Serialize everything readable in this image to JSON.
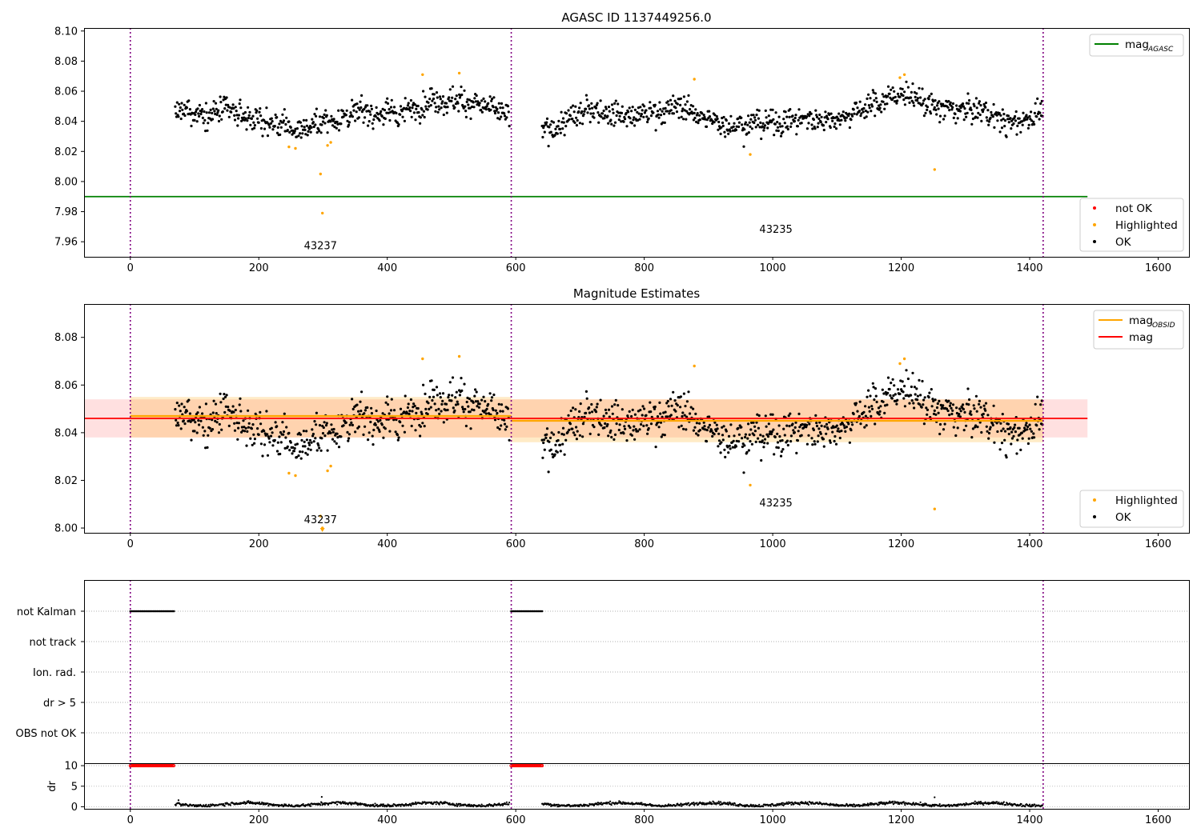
{
  "chart_data": [
    {
      "type": "scatter",
      "title": "AGASC ID 1137449256.0",
      "xlim": [
        -72,
        1648
      ],
      "ylim": [
        7.95,
        8.102
      ],
      "xticks": [
        0,
        200,
        400,
        600,
        800,
        1000,
        1200,
        1400,
        1600
      ],
      "yticks": [
        "7.96",
        "7.98",
        "8.00",
        "8.02",
        "8.04",
        "8.06",
        "8.08",
        "8.10"
      ],
      "obsid_boundaries": [
        0,
        593,
        1421
      ],
      "obsid_labels": [
        {
          "text": "43237",
          "x": 296,
          "y": 7.955
        },
        {
          "text": "43235",
          "x": 1005,
          "y": 7.966
        }
      ],
      "reference_lines": [
        {
          "name": "mag_AGASC",
          "y": 7.99,
          "x_range": [
            -72,
            1490
          ],
          "color": "#008000"
        }
      ],
      "legends": [
        {
          "position": "top-right",
          "entries": [
            {
              "label": "mag",
              "subscript": "AGASC",
              "kind": "line",
              "color": "#008000"
            }
          ]
        },
        {
          "position": "bottom-right",
          "entries": [
            {
              "label": "not OK",
              "kind": "dot",
              "color": "#ff0000"
            },
            {
              "label": "Highlighted",
              "kind": "dot",
              "color": "#ffa500"
            },
            {
              "label": "OK",
              "kind": "dot",
              "color": "#000000"
            }
          ]
        }
      ],
      "series": [
        {
          "name": "OK",
          "color": "#000000",
          "segments": [
            {
              "x_range": [
                70,
                590
              ],
              "trend": [
                [
                  70,
                  8.046
                ],
                [
                  150,
                  8.046
                ],
                [
                  200,
                  8.041
                ],
                [
                  260,
                  8.034
                ],
                [
                  300,
                  8.04
                ],
                [
                  360,
                  8.046
                ],
                [
                  420,
                  8.045
                ],
                [
                  470,
                  8.055
                ],
                [
                  530,
                  8.053
                ],
                [
                  590,
                  8.043
                ]
              ],
              "spread": 0.0045
            },
            {
              "x_range": [
                641,
                1420
              ],
              "trend": [
                [
                  641,
                  8.032
                ],
                [
                  680,
                  8.04
                ],
                [
                  720,
                  8.049
                ],
                [
                  780,
                  8.043
                ],
                [
                  860,
                  8.05
                ],
                [
                  900,
                  8.04
                ],
                [
                  960,
                  8.038
                ],
                [
                  1040,
                  8.041
                ],
                [
                  1100,
                  8.042
                ],
                [
                  1150,
                  8.05
                ],
                [
                  1200,
                  8.059
                ],
                [
                  1260,
                  8.048
                ],
                [
                  1330,
                  8.047
                ],
                [
                  1370,
                  8.038
                ],
                [
                  1420,
                  8.047
                ]
              ],
              "spread": 0.0045
            }
          ]
        },
        {
          "name": "Highlighted",
          "color": "#ffa500",
          "points": [
            [
              247,
              8.023
            ],
            [
              257,
              8.022
            ],
            [
              296,
              8.005
            ],
            [
              299,
              7.979
            ],
            [
              307,
              8.024
            ],
            [
              312,
              8.026
            ],
            [
              455,
              8.071
            ],
            [
              512,
              8.072
            ],
            [
              878,
              8.068
            ],
            [
              965,
              8.018
            ],
            [
              1198,
              8.069
            ],
            [
              1205,
              8.071
            ],
            [
              1252,
              8.008
            ]
          ]
        }
      ]
    },
    {
      "type": "scatter",
      "title": "Magnitude Estimates",
      "xlim": [
        -72,
        1648
      ],
      "ylim": [
        7.998,
        8.094
      ],
      "xticks": [
        0,
        200,
        400,
        600,
        800,
        1000,
        1200,
        1400,
        1600
      ],
      "yticks": [
        "8.00",
        "8.02",
        "8.04",
        "8.06",
        "8.08"
      ],
      "obsid_boundaries": [
        0,
        593,
        1421
      ],
      "obsid_labels": [
        {
          "text": "43237",
          "x": 296,
          "y": 8.002
        },
        {
          "text": "43235",
          "x": 1005,
          "y": 8.009
        }
      ],
      "bands": [
        {
          "name": "mag band",
          "x_range": [
            -72,
            1490
          ],
          "y_range": [
            8.038,
            8.054
          ],
          "color": "#ff0000",
          "opacity": 0.12
        },
        {
          "name": "mag_OBSID band 43237",
          "x_range": [
            0,
            593
          ],
          "y_range": [
            8.038,
            8.055
          ],
          "color": "#ffa500",
          "opacity": 0.22
        },
        {
          "name": "mag_OBSID band 43235",
          "x_range": [
            593,
            1421
          ],
          "y_range": [
            8.036,
            8.054
          ],
          "color": "#ffa500",
          "opacity": 0.22
        }
      ],
      "lines": [
        {
          "name": "mag_OBSID",
          "color": "#ffa500",
          "segments": [
            [
              [
                0,
                8.047
              ],
              [
                593,
                8.047
              ]
            ],
            [
              [
                593,
                8.045
              ],
              [
                1421,
                8.045
              ]
            ]
          ]
        },
        {
          "name": "mag",
          "color": "#ff0000",
          "segments": [
            [
              [
                -72,
                8.046
              ],
              [
                1490,
                8.046
              ]
            ]
          ]
        }
      ],
      "legends": [
        {
          "position": "top-right",
          "entries": [
            {
              "label": "mag",
              "subscript": "OBSID",
              "kind": "line",
              "color": "#ffa500"
            },
            {
              "label": "mag",
              "kind": "line",
              "color": "#ff0000"
            }
          ]
        },
        {
          "position": "bottom-right",
          "entries": [
            {
              "label": "Highlighted",
              "kind": "dot",
              "color": "#ffa500"
            },
            {
              "label": "OK",
              "kind": "dot",
              "color": "#000000"
            }
          ]
        }
      ],
      "series": [
        {
          "name": "OK",
          "color": "#000000",
          "same_as_panel": 0
        },
        {
          "name": "Highlighted",
          "color": "#ffa500",
          "points": [
            [
              247,
              8.023
            ],
            [
              257,
              8.022
            ],
            [
              296,
              8.005
            ],
            [
              299,
              8.0
            ],
            [
              307,
              8.024
            ],
            [
              312,
              8.026
            ],
            [
              455,
              8.071
            ],
            [
              512,
              8.072
            ],
            [
              878,
              8.068
            ],
            [
              965,
              8.018
            ],
            [
              1198,
              8.069
            ],
            [
              1205,
              8.071
            ],
            [
              1252,
              8.008
            ]
          ]
        }
      ]
    },
    {
      "type": "scatter",
      "title": "",
      "xlim": [
        -72,
        1648
      ],
      "xticks": [
        0,
        200,
        400,
        600,
        800,
        1000,
        1200,
        1400,
        1600
      ],
      "obsid_boundaries": [
        0,
        593,
        1421
      ],
      "flag_rows": [
        "not Kalman",
        "not track",
        "Ion. rad.",
        "dr > 5",
        "OBS not OK"
      ],
      "flags": [
        {
          "row": "not Kalman",
          "color": "#000000",
          "x_ranges": [
            [
              0,
              68
            ],
            [
              593,
              641
            ]
          ]
        }
      ]
    },
    {
      "type": "scatter",
      "title": "",
      "ylabel": "dr",
      "xlim": [
        -72,
        1648
      ],
      "ylim": [
        -0.5,
        10.6
      ],
      "yticks": [
        "0",
        "5",
        "10"
      ],
      "xticks": [
        0,
        200,
        400,
        600,
        800,
        1000,
        1200,
        1400,
        1600
      ],
      "obsid_boundaries": [
        0,
        593,
        1421
      ],
      "series": [
        {
          "name": "dr (not tracked, clipped)",
          "color": "#ff0000",
          "y": 10,
          "x_ranges": [
            [
              0,
              68
            ],
            [
              593,
              641
            ]
          ]
        },
        {
          "name": "dr",
          "color": "#000000",
          "x_ranges": [
            [
              70,
              590
            ],
            [
              641,
              1420
            ]
          ],
          "typical": 0.6,
          "max": 1.5,
          "outliers": [
            [
              298,
              2.4
            ],
            [
              1252,
              2.3
            ],
            [
              75,
              1.6
            ]
          ]
        }
      ]
    }
  ]
}
